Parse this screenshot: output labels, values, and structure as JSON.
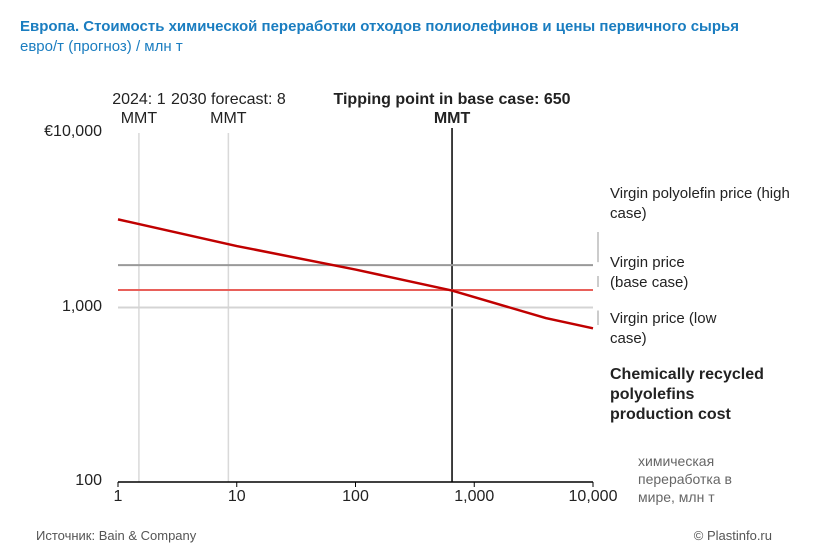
{
  "chart_data": {
    "type": "line",
    "title": "Европа. Стоимость химической переработки отходов полиолефинов и цены первичного сырья",
    "subtitle": "евро/т (прогноз) / млн т",
    "x_label": "химическая переработка в мире, млн т",
    "log_x": true,
    "log_y": true,
    "xlim": [
      1,
      10000
    ],
    "ylim": [
      100,
      10000
    ],
    "xticks": [
      1,
      10,
      100,
      {
        "value": 1000,
        "label": "1,000"
      },
      {
        "value": 10000,
        "label": "10,000"
      }
    ],
    "yticks": [
      100,
      {
        "value": 1000,
        "label": "1,000"
      },
      {
        "value": 10000,
        "label": "€10,000"
      }
    ],
    "annotations": [
      {
        "x": 1.5,
        "label": "2024: 1 MMT",
        "color": "#d9d9d9"
      },
      {
        "x": 8.5,
        "label": "2030 forecast: 8 MMT",
        "color": "#d9d9d9"
      },
      {
        "x": 650,
        "label": "Tipping point in base case: 650 MMT",
        "color": "#000000"
      }
    ],
    "series": [
      {
        "name": "Virgin polyolefin price (high case)",
        "color": "#999999",
        "x": [
          1,
          10000
        ],
        "values": [
          1750,
          1750
        ]
      },
      {
        "name": "Virgin price (base case)",
        "color": "#e8605a",
        "x": [
          1,
          10000
        ],
        "values": [
          1260,
          1260
        ]
      },
      {
        "name": "Virgin price (low case)",
        "color": "#d4d4d4",
        "x": [
          1,
          10000
        ],
        "values": [
          1000,
          1000
        ]
      },
      {
        "name": "Chemically recycled polyolefins production cost",
        "color": "#c00000",
        "x": [
          1,
          10,
          100,
          650,
          4000,
          10000
        ],
        "values": [
          3200,
          2250,
          1650,
          1250,
          870,
          760
        ]
      }
    ],
    "source": "Источник:  Bain & Company",
    "credit": "© Plastinfo.ru"
  }
}
